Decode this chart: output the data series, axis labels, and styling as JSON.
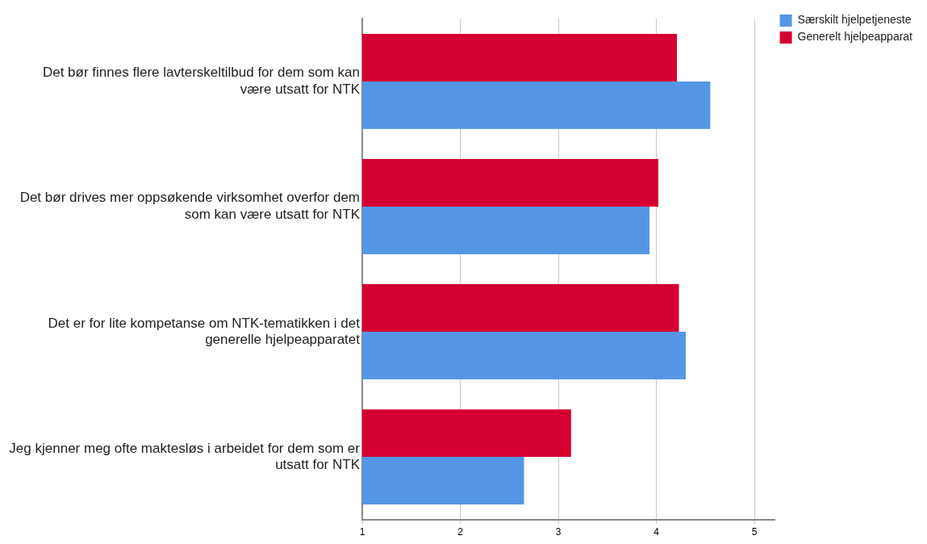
{
  "chart_data": {
    "type": "bar",
    "orientation": "horizontal",
    "categories": [
      "Det bør finnes flere lavterskeltilbud for dem som kan være utsatt for NTK",
      "Det bør drives mer oppsøkende virksomhet overfor dem som kan være utsatt for NTK",
      "Det er for lite kompetanse om NTK-tematikken i det generelle hjelpeapparatet",
      "Jeg kjenner meg ofte maktesløs i arbeidet for dem som er utsatt for NTK"
    ],
    "series": [
      {
        "name": "Særskilt hjelpetjeneste",
        "color": "#5596e4",
        "values": [
          4.55,
          3.93,
          4.3,
          2.65
        ]
      },
      {
        "name": "Generelt hjelpeapparat",
        "color": "#d50032",
        "values": [
          4.21,
          4.02,
          4.23,
          3.13
        ]
      }
    ],
    "xlim": [
      1,
      5.21
    ],
    "xticks": [
      1,
      2,
      3,
      4,
      5
    ],
    "grid": "x",
    "legend": "top right"
  }
}
